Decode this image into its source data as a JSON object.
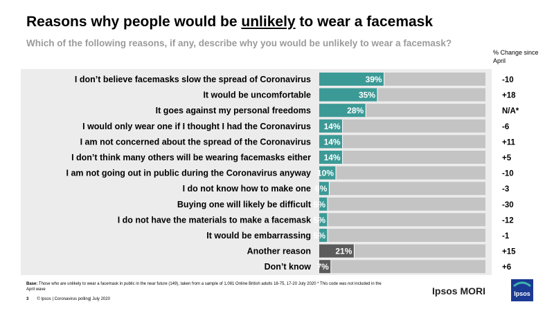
{
  "title": {
    "before": "Reasons why people would be ",
    "underlined": "unlikely",
    "after": " to wear a facemask"
  },
  "subtitle": "Which of the following reasons, if any, describe why you would be unlikely to wear a facemask?",
  "change_header": "% Change since April",
  "base_label": "Base:",
  "base_text": "Those who are unlikely to wear a facemask in public in the near future (149), taken from a sample of 1,081 Online British adults 18-75, 17-20 July 2020 * This code was not included in the April wave",
  "footer": {
    "page_number": "3",
    "text": "© Ipsos | Coronavirus polling| July 2020"
  },
  "brand": {
    "name": "Ipsos MORI",
    "logo_text": "Ipsos"
  },
  "colors": {
    "teal": "#3c9a96",
    "dark": "#5b5b5b",
    "track": "#c4c4c4",
    "band": "#ececec"
  },
  "chart_data": {
    "type": "bar",
    "orientation": "horizontal",
    "xlim": [
      0,
      100
    ],
    "categories": [
      "I don’t believe facemasks slow the spread of Coronavirus",
      "It would be uncomfortable",
      "It goes against my personal freedoms",
      "I would only wear one if I thought I had the Coronavirus",
      "I am not concerned about the spread of the Coronavirus",
      "I don’t think many others will be wearing facemasks either",
      "I am not going out in public during the Coronavirus anyway",
      "I do not know how to make one",
      "Buying one will likely be difficult",
      "I do not have the materials to make a facemask",
      "It would be embarrassing",
      "Another reason",
      "Don’t know"
    ],
    "values": [
      39,
      35,
      28,
      14,
      14,
      14,
      10,
      6,
      5,
      5,
      5,
      21,
      7
    ],
    "value_labels": [
      "39%",
      "35%",
      "28%",
      "14%",
      "14%",
      "14%",
      "10%",
      "6%",
      "5%",
      "5%",
      "5%",
      "21%",
      "7%"
    ],
    "bar_style": [
      "teal",
      "teal",
      "teal",
      "teal",
      "teal",
      "teal",
      "teal",
      "teal",
      "teal",
      "teal",
      "teal",
      "dark",
      "dark"
    ],
    "change_since_april": [
      "-10",
      "+18",
      "N/A*",
      "-6",
      "+11",
      "+5",
      "-10",
      "-3",
      "-30",
      "-12",
      "-1",
      "+15",
      "+6"
    ]
  }
}
